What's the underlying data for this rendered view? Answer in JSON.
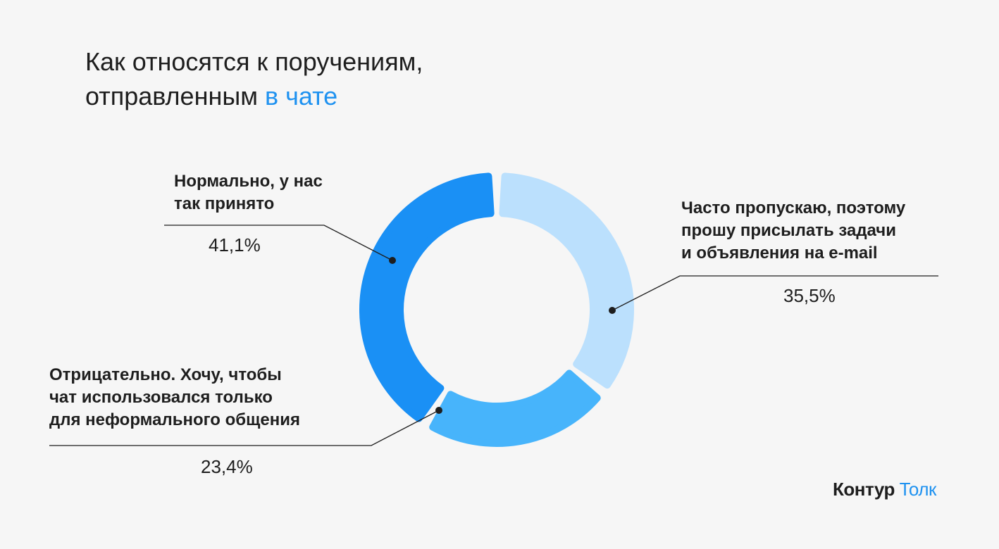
{
  "title": {
    "line1": "Как относятся к поручениям,",
    "line2_plain": "отправленным ",
    "line2_accent": "в чате"
  },
  "chart_data": {
    "type": "pie",
    "donut": true,
    "title": "Как относятся к поручениям, отправленным в чате",
    "slices": [
      {
        "label": "Нормально, у нас так принято",
        "value": 41.1,
        "value_text": "41,1%",
        "color": "#1a90f5"
      },
      {
        "label": "Часто пропускаю, поэтому прошу присылать задачи и объявления на e-mail",
        "value": 35.5,
        "value_text": "35,5%",
        "color": "#bbe0fd"
      },
      {
        "label": "Отрицательно. Хочу, чтобы чат использовался только для неформального общения",
        "value": 23.4,
        "value_text": "23,4%",
        "color": "#47b4fb"
      }
    ]
  },
  "labels": {
    "normal": "Нормально, у нас\nтак принято",
    "often": "Часто пропускаю, поэтому\nпрошу присылать задачи\nи объявления на e-mail",
    "negative": "Отрицательно. Хочу, чтобы\nчат использовался только\nдля неформального общения"
  },
  "logo": {
    "brand": "Контур",
    "product": "Толк"
  }
}
